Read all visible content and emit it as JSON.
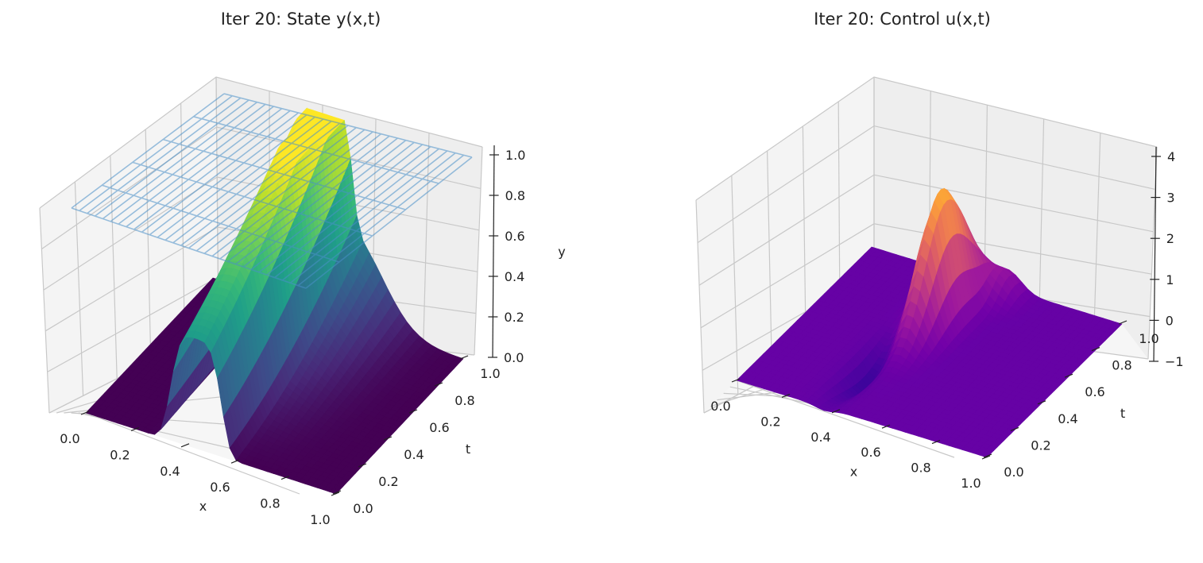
{
  "chart_data": [
    {
      "type": "surface3d",
      "title": "Iter 20: State y(x,t)",
      "xlabel": "x",
      "ylabel": "t",
      "zlabel": "y",
      "xlim": [
        0,
        1
      ],
      "ylim": [
        0,
        1
      ],
      "zlim": [
        0,
        1
      ],
      "xticks": [
        "0.0",
        "0.2",
        "0.4",
        "0.6",
        "0.8",
        "1.0"
      ],
      "yticks": [
        "0.0",
        "0.2",
        "0.4",
        "0.6",
        "0.8",
        "1.0"
      ],
      "zticks": [
        "0.0",
        "0.2",
        "0.4",
        "0.6",
        "0.8",
        "1.0"
      ],
      "colormap": "viridis",
      "grid": true,
      "target_wireframe": {
        "z": 1.0,
        "color": "#4a90c8"
      },
      "surface": {
        "description_model": "y rises to ~1.0 near x≈0.45, strongest at t=1; lower elsewhere",
        "peak_x": 0.45,
        "peak_value": 1.0
      }
    },
    {
      "type": "surface3d",
      "title": "Iter 20: Control u(x,t)",
      "xlabel": "x",
      "ylabel": "t",
      "zlabel": "",
      "xlim": [
        0,
        1
      ],
      "ylim": [
        0,
        1
      ],
      "zlim": [
        -1,
        4.5
      ],
      "xticks": [
        "0.0",
        "0.2",
        "0.4",
        "0.6",
        "0.8",
        "1.0"
      ],
      "yticks": [
        "0.0",
        "0.2",
        "0.4",
        "0.6",
        "0.8",
        "1.0"
      ],
      "zticks": [
        "−1",
        "0",
        "1",
        "2",
        "3",
        "4"
      ],
      "colormap": "plasma",
      "grid": true,
      "surface": {
        "peak_x": 0.45,
        "peak_t": 0.7,
        "peak_value": 3.3
      }
    }
  ]
}
